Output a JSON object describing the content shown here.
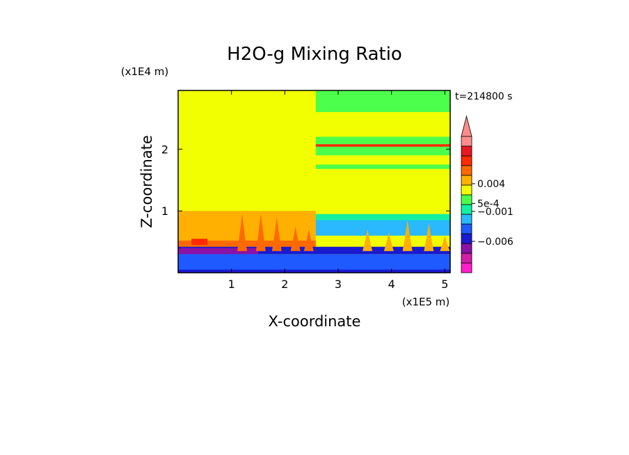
{
  "chart_data": {
    "type": "heatmap",
    "title": "H2O-g Mixing Ratio",
    "xlabel": "X-coordinate",
    "ylabel": "Z-coordinate",
    "x_scale_label": "(x1E5 m)",
    "y_scale_label": "(x1E4 m)",
    "time_label": "t=214800 s",
    "xlim": [
      0,
      5.1
    ],
    "ylim": [
      0,
      2.95
    ],
    "x_ticks": [
      {
        "value": 1,
        "label": "1"
      },
      {
        "value": 2,
        "label": "2"
      },
      {
        "value": 3,
        "label": "3"
      },
      {
        "value": 4,
        "label": "4"
      },
      {
        "value": 5,
        "label": "5"
      }
    ],
    "y_ticks": [
      {
        "value": 1,
        "label": "1"
      },
      {
        "value": 2,
        "label": "2"
      }
    ],
    "colorbar": {
      "extend": "max",
      "colors": [
        "#ff1fc8",
        "#d01ea8",
        "#8a12a8",
        "#1a1ad0",
        "#1e5aff",
        "#2ab8ff",
        "#14f0a0",
        "#4cff4c",
        "#f2ff00",
        "#ffb000",
        "#ff6a00",
        "#ff2a00",
        "#e81820",
        "#ff8c8c"
      ],
      "labels": [
        {
          "value": 0.004,
          "label": "0.004",
          "position": 0.653
        },
        {
          "value": 0.0005,
          "label": "5e-4",
          "position": 0.508
        },
        {
          "value": -0.001,
          "label": "−0.001",
          "position": 0.45
        },
        {
          "value": -0.006,
          "label": "−0.006",
          "position": 0.23
        }
      ]
    },
    "regions": [
      {
        "x": [
          0,
          5.1
        ],
        "z": [
          0,
          2.95
        ],
        "color": "#f2ff00"
      },
      {
        "x": [
          2.58,
          5.1
        ],
        "z": [
          2.6,
          2.95
        ],
        "color": "#4cff4c"
      },
      {
        "x": [
          2.58,
          5.1
        ],
        "z": [
          1.9,
          2.2
        ],
        "color": "#4cff4c"
      },
      {
        "x": [
          2.58,
          5.1
        ],
        "z": [
          2.04,
          2.08
        ],
        "color": "#ff2a00"
      },
      {
        "x": [
          2.58,
          5.1
        ],
        "z": [
          1.68,
          1.75
        ],
        "color": "#4cff4c"
      },
      {
        "x": [
          0,
          2.58
        ],
        "z": [
          0.4,
          1.0
        ],
        "color": "#ffb000"
      },
      {
        "x": [
          0,
          2.58
        ],
        "z": [
          0.4,
          0.52
        ],
        "color": "#ff6a00"
      },
      {
        "x": [
          0.25,
          0.55
        ],
        "z": [
          0.45,
          0.55
        ],
        "color": "#ff2a00"
      },
      {
        "x": [
          2.58,
          5.1
        ],
        "z": [
          0.6,
          0.9
        ],
        "color": "#2ab8ff"
      },
      {
        "x": [
          2.58,
          5.1
        ],
        "z": [
          0.85,
          0.95
        ],
        "color": "#14f0a0"
      },
      {
        "x": [
          0,
          5.1
        ],
        "z": [
          0.3,
          0.42
        ],
        "color": "#1a1ad0"
      },
      {
        "x": [
          0,
          1.5
        ],
        "z": [
          0.3,
          0.4
        ],
        "color": "#8a12a8"
      },
      {
        "x": [
          0,
          5.1
        ],
        "z": [
          0,
          0.3
        ],
        "color": "#1e5aff"
      },
      {
        "x": [
          0,
          5.1
        ],
        "z": [
          0,
          0.05
        ],
        "color": "#1a1ad0"
      }
    ],
    "plumes": [
      {
        "x": 1.2,
        "z_top": 0.95,
        "color": "#ff6a00"
      },
      {
        "x": 1.55,
        "z_top": 0.95,
        "color": "#ff6a00"
      },
      {
        "x": 1.85,
        "z_top": 0.9,
        "color": "#ff6a00"
      },
      {
        "x": 2.2,
        "z_top": 0.75,
        "color": "#ff6a00"
      },
      {
        "x": 2.45,
        "z_top": 0.7,
        "color": "#ff6a00"
      },
      {
        "x": 3.55,
        "z_top": 0.7,
        "color": "#ffb000"
      },
      {
        "x": 3.95,
        "z_top": 0.65,
        "color": "#ffb000"
      },
      {
        "x": 4.3,
        "z_top": 0.85,
        "color": "#ffb000"
      },
      {
        "x": 4.7,
        "z_top": 0.8,
        "color": "#ffb000"
      },
      {
        "x": 5.0,
        "z_top": 0.6,
        "color": "#ffb000"
      }
    ]
  }
}
